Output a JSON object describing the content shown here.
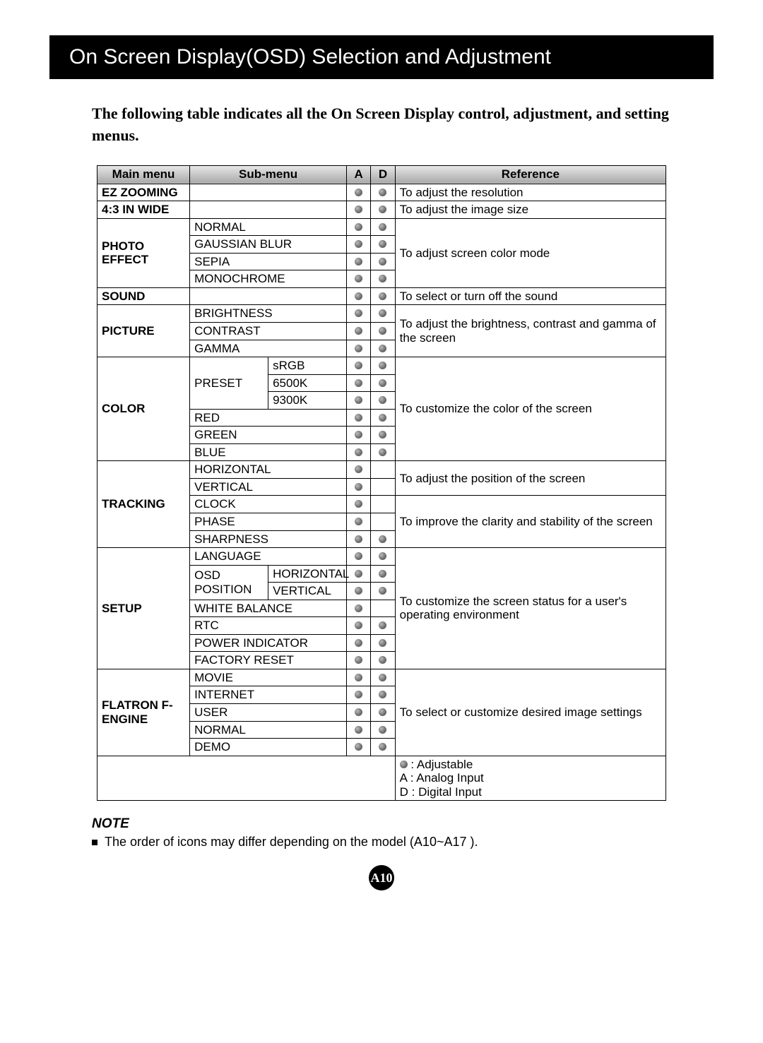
{
  "title": "On Screen Display(OSD) Selection and Adjustment",
  "intro": "The following table indicates all the On Screen Display control, adjustment, and setting menus.",
  "headers": {
    "main": "Main menu",
    "sub": "Sub-menu",
    "a": "A",
    "d": "D",
    "ref": "Reference"
  },
  "rows": {
    "ez_zooming": "EZ ZOOMING",
    "ez_zooming_ref": "To adjust the resolution",
    "wide": "4:3 IN WIDE",
    "wide_ref": "To adjust the image size",
    "photo": "PHOTO EFFECT",
    "photo_sub": {
      "normal": "NORMAL",
      "gauss": "GAUSSIAN BLUR",
      "sepia": "SEPIA",
      "mono": "MONOCHROME"
    },
    "photo_ref": "To adjust screen color mode",
    "sound": "SOUND",
    "sound_ref": "To select or turn off the sound",
    "picture": "PICTURE",
    "picture_sub": {
      "brightness": "BRIGHTNESS",
      "contrast": "CONTRAST",
      "gamma": "GAMMA"
    },
    "picture_ref": "To adjust the brightness, contrast and gamma of the screen",
    "color": "COLOR",
    "color_sub": {
      "preset": "PRESET",
      "srgb": "sRGB",
      "k65": "6500K",
      "k93": "9300K",
      "red": "RED",
      "green": "GREEN",
      "blue": "BLUE"
    },
    "color_ref": "To customize the color of the screen",
    "tracking": "TRACKING",
    "tracking_sub": {
      "hor": "HORIZONTAL",
      "ver": "VERTICAL",
      "clock": "CLOCK",
      "phase": "PHASE",
      "sharp": "SHARPNESS"
    },
    "tracking_ref1": "To adjust the position of the screen",
    "tracking_ref2": "To improve the clarity and stability of the screen",
    "setup": "SETUP",
    "setup_sub": {
      "lang": "LANGUAGE",
      "osdpos": "OSD POSITION",
      "hor": "HORIZONTAL",
      "ver": "VERTICAL",
      "wb": "WHITE BALANCE",
      "rtc": "RTC",
      "power": "POWER INDICATOR",
      "factory": "FACTORY RESET"
    },
    "setup_ref": "To customize the screen status for a user's operating environment",
    "fengine": "FLATRON F-ENGINE",
    "fengine_sub": {
      "movie": "MOVIE",
      "internet": "INTERNET",
      "user": "USER",
      "normal": "NORMAL",
      "demo": "DEMO"
    },
    "fengine_ref": "To select or customize desired image settings"
  },
  "legend": {
    "dot": ": Adjustable",
    "a": "A : Analog Input",
    "d": "D : Digital Input"
  },
  "note": {
    "label": "NOTE",
    "text": "The order of icons may differ depending on the model (A10~A17 )."
  },
  "page_number": "A10"
}
